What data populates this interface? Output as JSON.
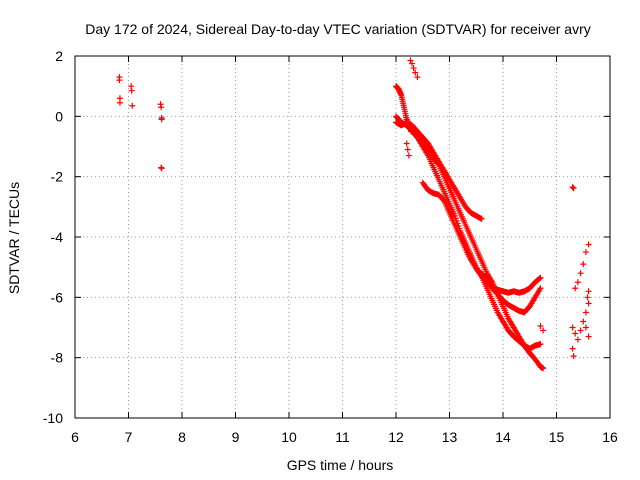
{
  "chart_data": {
    "type": "scatter",
    "title": "Day 172 of 2024, Sidereal Day-to-day VTEC variation (SDTVAR) for receiver avry",
    "xlabel": "GPS time / hours",
    "ylabel": "SDTVAR / TECUs",
    "xlim": [
      6,
      16
    ],
    "ylim": [
      -10,
      2
    ],
    "xticks": [
      6,
      7,
      8,
      9,
      10,
      11,
      12,
      13,
      14,
      15,
      16
    ],
    "yticks": [
      -10,
      -8,
      -6,
      -4,
      -2,
      0,
      2
    ],
    "grid": true,
    "marker": "+",
    "color": "#ff0000",
    "series": [
      {
        "name": "early",
        "points": [
          [
            6.83,
            1.3
          ],
          [
            6.83,
            1.2
          ],
          [
            6.84,
            0.6
          ],
          [
            6.84,
            0.45
          ],
          [
            7.05,
            1.0
          ],
          [
            7.06,
            0.85
          ],
          [
            7.07,
            0.35
          ],
          [
            7.6,
            0.4
          ],
          [
            7.61,
            0.3
          ],
          [
            7.62,
            -0.05
          ],
          [
            7.62,
            -0.1
          ],
          [
            7.61,
            -1.7
          ],
          [
            7.62,
            -1.72
          ]
        ]
      },
      {
        "name": "trackA",
        "points": [
          [
            12.0,
            1.0
          ],
          [
            12.05,
            0.9
          ],
          [
            12.1,
            0.7
          ],
          [
            12.15,
            0.3
          ],
          [
            12.2,
            -0.1
          ],
          [
            12.3,
            -0.45
          ],
          [
            12.4,
            -0.7
          ],
          [
            12.5,
            -0.9
          ],
          [
            12.6,
            -1.1
          ],
          [
            12.7,
            -1.4
          ],
          [
            12.8,
            -1.6
          ],
          [
            12.9,
            -2.0
          ],
          [
            13.0,
            -2.4
          ],
          [
            13.1,
            -2.8
          ],
          [
            13.2,
            -3.2
          ],
          [
            13.3,
            -3.6
          ],
          [
            13.4,
            -4.0
          ],
          [
            13.5,
            -4.4
          ],
          [
            13.6,
            -4.8
          ],
          [
            13.7,
            -5.2
          ],
          [
            13.8,
            -5.5
          ],
          [
            13.9,
            -5.9
          ],
          [
            14.0,
            -6.3
          ],
          [
            14.1,
            -6.7
          ],
          [
            14.2,
            -7.0
          ],
          [
            14.3,
            -7.3
          ],
          [
            14.4,
            -7.6
          ],
          [
            14.5,
            -7.85
          ],
          [
            14.6,
            -8.05
          ],
          [
            14.7,
            -8.3
          ],
          [
            14.75,
            -8.35
          ]
        ]
      },
      {
        "name": "trackB",
        "points": [
          [
            12.0,
            0.0
          ],
          [
            12.1,
            -0.2
          ],
          [
            12.2,
            -0.3
          ],
          [
            12.3,
            -0.5
          ],
          [
            12.4,
            -0.7
          ],
          [
            12.5,
            -1.0
          ],
          [
            12.6,
            -1.3
          ],
          [
            12.7,
            -1.7
          ],
          [
            12.8,
            -2.1
          ],
          [
            12.9,
            -2.5
          ],
          [
            13.0,
            -2.9
          ],
          [
            13.1,
            -3.3
          ],
          [
            13.2,
            -3.8
          ],
          [
            13.3,
            -4.2
          ],
          [
            13.4,
            -4.6
          ],
          [
            13.5,
            -5.0
          ],
          [
            13.6,
            -5.3
          ],
          [
            13.7,
            -5.7
          ],
          [
            13.8,
            -6.1
          ],
          [
            13.9,
            -6.5
          ],
          [
            14.0,
            -6.8
          ],
          [
            14.1,
            -7.1
          ],
          [
            14.2,
            -7.3
          ],
          [
            14.3,
            -7.45
          ],
          [
            14.4,
            -7.6
          ],
          [
            14.5,
            -7.7
          ],
          [
            14.6,
            -7.6
          ],
          [
            14.7,
            -7.55
          ]
        ]
      },
      {
        "name": "trackC",
        "points": [
          [
            12.0,
            -0.2
          ],
          [
            12.1,
            -0.3
          ],
          [
            12.2,
            -0.2
          ],
          [
            12.3,
            -0.3
          ],
          [
            12.4,
            -0.5
          ],
          [
            12.5,
            -0.7
          ],
          [
            12.6,
            -0.9
          ],
          [
            12.7,
            -1.2
          ],
          [
            12.8,
            -1.5
          ],
          [
            12.9,
            -1.8
          ],
          [
            13.0,
            -2.1
          ],
          [
            13.1,
            -2.4
          ],
          [
            13.2,
            -2.7
          ],
          [
            13.3,
            -3.0
          ],
          [
            13.4,
            -3.2
          ],
          [
            13.5,
            -3.3
          ],
          [
            13.6,
            -3.4
          ]
        ]
      },
      {
        "name": "trackD",
        "points": [
          [
            12.5,
            -2.2
          ],
          [
            12.6,
            -2.45
          ],
          [
            12.7,
            -2.55
          ],
          [
            12.8,
            -2.6
          ],
          [
            12.9,
            -2.8
          ],
          [
            13.0,
            -3.2
          ],
          [
            13.1,
            -3.6
          ],
          [
            13.2,
            -4.0
          ],
          [
            13.3,
            -4.4
          ],
          [
            13.4,
            -4.75
          ],
          [
            13.5,
            -5.05
          ],
          [
            13.6,
            -5.3
          ],
          [
            13.7,
            -5.5
          ],
          [
            13.8,
            -5.65
          ],
          [
            13.9,
            -5.75
          ],
          [
            14.0,
            -5.8
          ],
          [
            14.1,
            -5.85
          ],
          [
            14.2,
            -5.8
          ],
          [
            14.3,
            -5.85
          ],
          [
            14.4,
            -5.8
          ],
          [
            14.5,
            -5.7
          ],
          [
            14.6,
            -5.5
          ],
          [
            14.7,
            -5.35
          ]
        ]
      },
      {
        "name": "trackE",
        "points": [
          [
            13.6,
            -5.2
          ],
          [
            13.7,
            -5.4
          ],
          [
            13.8,
            -5.7
          ],
          [
            13.9,
            -5.9
          ],
          [
            14.0,
            -6.1
          ],
          [
            14.1,
            -6.25
          ],
          [
            14.2,
            -6.35
          ],
          [
            14.3,
            -6.45
          ],
          [
            14.4,
            -6.5
          ],
          [
            14.5,
            -6.3
          ],
          [
            14.6,
            -6.0
          ],
          [
            14.7,
            -5.7
          ]
        ]
      },
      {
        "name": "branchTop",
        "points": [
          [
            12.27,
            1.85
          ],
          [
            12.3,
            1.75
          ],
          [
            12.33,
            1.6
          ],
          [
            12.36,
            1.45
          ],
          [
            12.4,
            1.3
          ],
          [
            12.2,
            -0.1
          ],
          [
            12.25,
            -0.3
          ],
          [
            12.28,
            -0.5
          ],
          [
            12.2,
            -0.9
          ],
          [
            12.22,
            -1.1
          ],
          [
            12.24,
            -1.3
          ]
        ]
      },
      {
        "name": "late",
        "points": [
          [
            14.7,
            -6.95
          ],
          [
            14.75,
            -7.1
          ],
          [
            15.3,
            -2.35
          ],
          [
            15.32,
            -2.38
          ],
          [
            15.35,
            -5.7
          ],
          [
            15.4,
            -5.5
          ],
          [
            15.45,
            -5.2
          ],
          [
            15.5,
            -4.9
          ],
          [
            15.55,
            -4.5
          ],
          [
            15.6,
            -4.25
          ],
          [
            15.3,
            -7.0
          ],
          [
            15.35,
            -7.2
          ],
          [
            15.4,
            -7.4
          ],
          [
            15.45,
            -7.1
          ],
          [
            15.5,
            -6.8
          ],
          [
            15.55,
            -6.5
          ],
          [
            15.6,
            -6.2
          ],
          [
            15.55,
            -7.0
          ],
          [
            15.6,
            -7.3
          ],
          [
            15.3,
            -7.7
          ],
          [
            15.32,
            -7.95
          ],
          [
            15.6,
            -5.8
          ],
          [
            15.58,
            -6.0
          ]
        ]
      }
    ]
  }
}
